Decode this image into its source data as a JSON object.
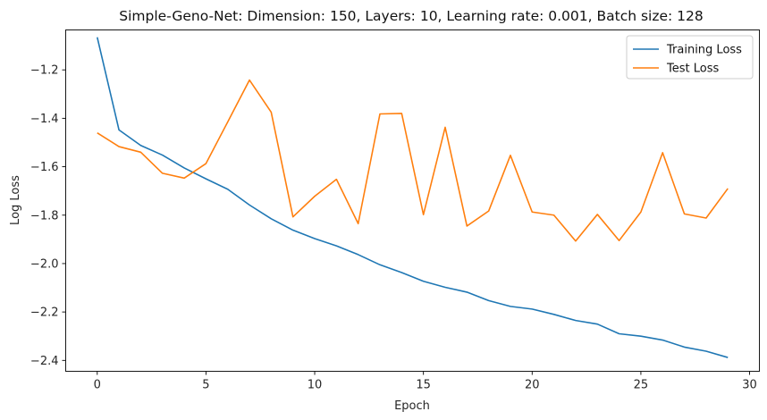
{
  "chart_data": {
    "type": "line",
    "title": "Simple-Geno-Net: Dimension: 150, Layers: 10, Learning rate: 0.001, Batch size: 128",
    "xlabel": "Epoch",
    "ylabel": "Log Loss",
    "xlim": [
      -1.45,
      30.45
    ],
    "ylim": [
      -2.445,
      -1.035
    ],
    "xticks": [
      0,
      5,
      10,
      15,
      20,
      25,
      30
    ],
    "yticks": [
      -2.4,
      -2.2,
      -2.0,
      -1.8,
      -1.6,
      -1.4,
      -1.2
    ],
    "grid": false,
    "legend_position": "top-right",
    "x": [
      0,
      1,
      2,
      3,
      4,
      5,
      6,
      7,
      8,
      9,
      10,
      11,
      12,
      13,
      14,
      15,
      16,
      17,
      18,
      19,
      20,
      21,
      22,
      23,
      24,
      25,
      26,
      27,
      28,
      29
    ],
    "series": [
      {
        "name": "Training Loss",
        "color": "#1f77b4",
        "values": [
          -1.065,
          -1.448,
          -1.512,
          -1.552,
          -1.605,
          -1.65,
          -1.693,
          -1.758,
          -1.815,
          -1.862,
          -1.897,
          -1.927,
          -1.963,
          -2.005,
          -2.037,
          -2.073,
          -2.098,
          -2.118,
          -2.153,
          -2.177,
          -2.188,
          -2.21,
          -2.235,
          -2.25,
          -2.29,
          -2.3,
          -2.316,
          -2.345,
          -2.362,
          -2.388
        ]
      },
      {
        "name": "Test Loss",
        "color": "#ff7f0e",
        "values": [
          -1.46,
          -1.517,
          -1.54,
          -1.627,
          -1.647,
          -1.587,
          -1.415,
          -1.242,
          -1.375,
          -1.807,
          -1.722,
          -1.652,
          -1.835,
          -1.382,
          -1.38,
          -1.798,
          -1.437,
          -1.845,
          -1.783,
          -1.553,
          -1.787,
          -1.8,
          -1.907,
          -1.797,
          -1.905,
          -1.787,
          -1.542,
          -1.795,
          -1.812,
          -1.69
        ]
      }
    ]
  }
}
